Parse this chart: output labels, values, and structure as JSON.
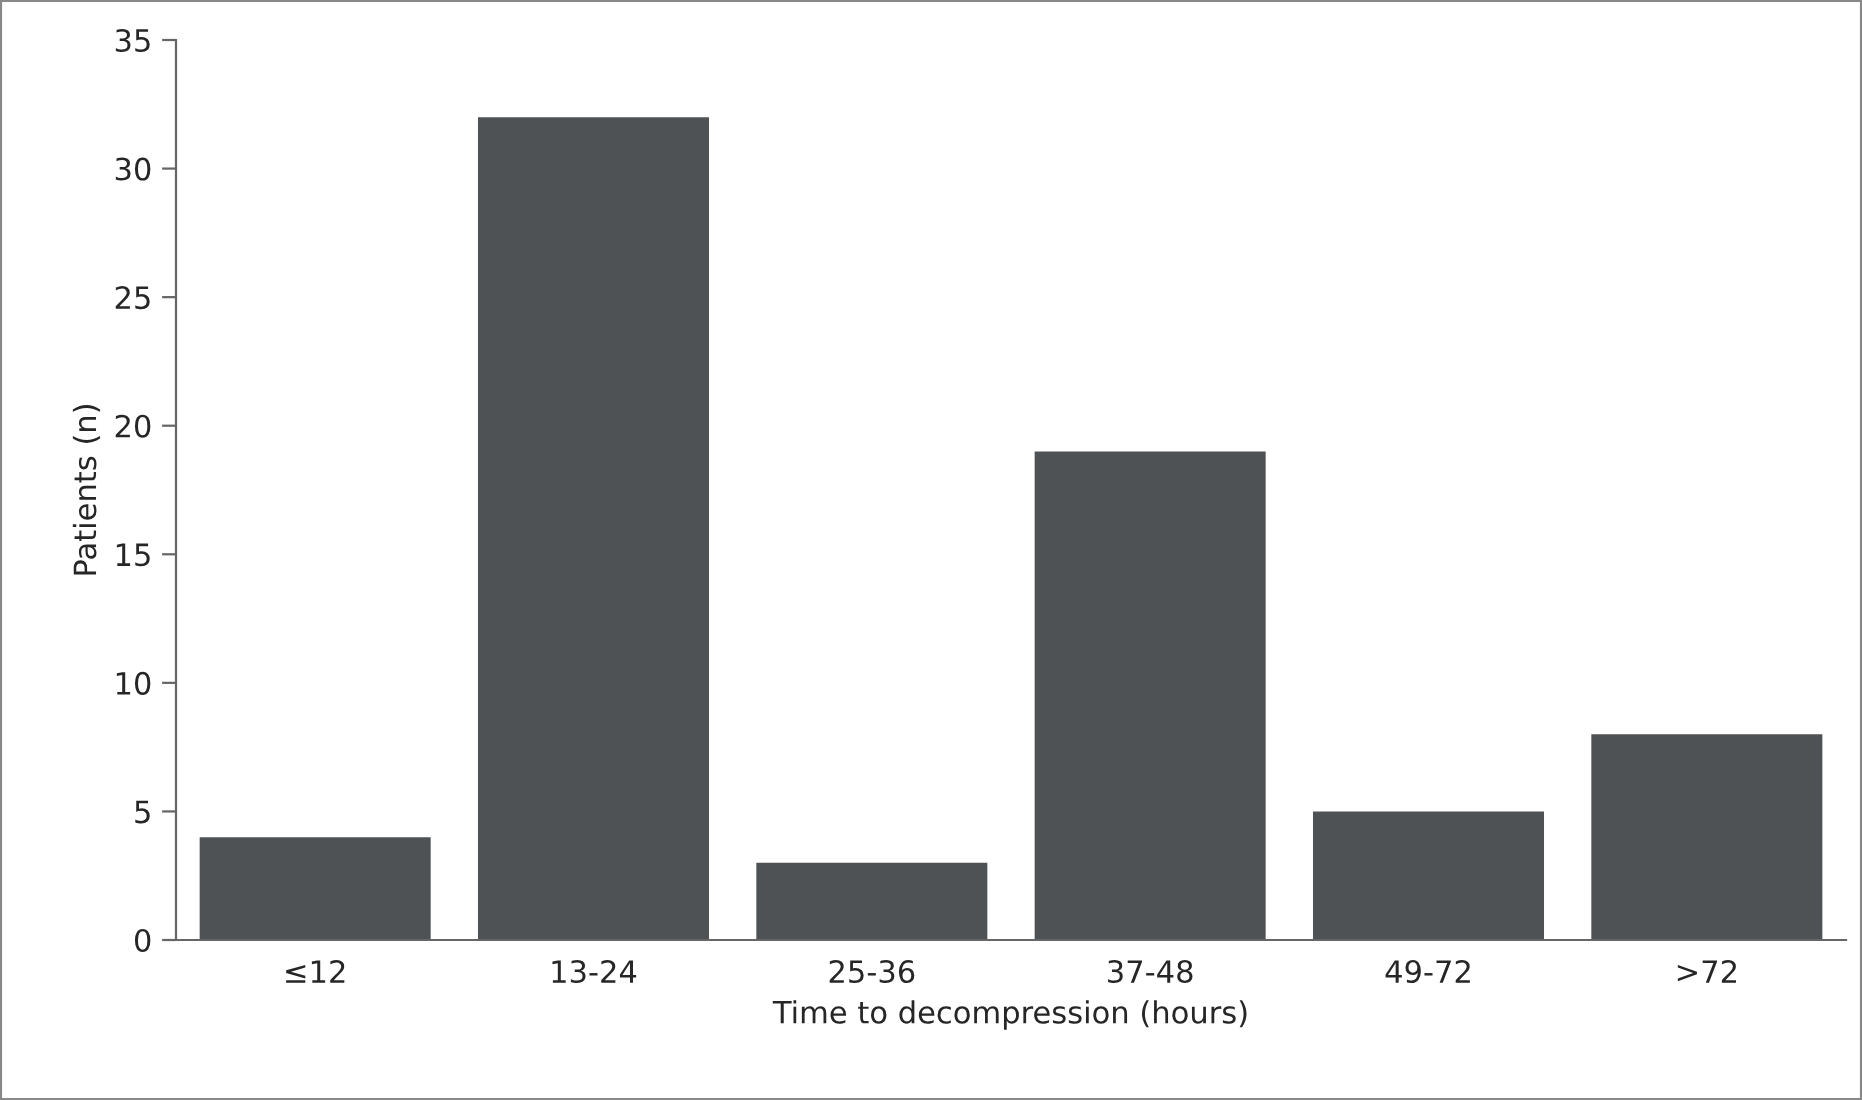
{
  "chart_data": {
    "type": "bar",
    "xlabel": "Time to decompression (hours)",
    "ylabel": "Patients (n)",
    "categories": [
      "≤12",
      "13-24",
      "25-36",
      "37-48",
      "49-72",
      ">72"
    ],
    "values": [
      4,
      32,
      3,
      19,
      5,
      8
    ],
    "color": "#4f5254",
    "ylim": [
      0,
      35
    ],
    "yticks": [
      0,
      5,
      10,
      15,
      20,
      25,
      30,
      35
    ],
    "grid": false,
    "legend": false
  }
}
